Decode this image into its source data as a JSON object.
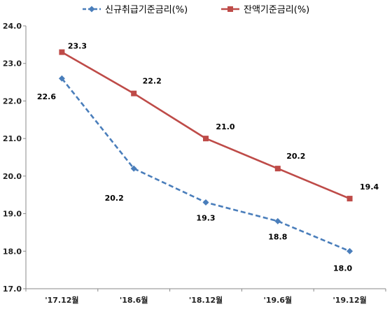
{
  "chart_data": {
    "type": "line",
    "categories": [
      "'17.12월",
      "'18.6월",
      "'18.12월",
      "'19.6월",
      "'19.12월"
    ],
    "series": [
      {
        "name": "신규취급기준금리(%)",
        "values": [
          22.6,
          20.2,
          19.3,
          18.8,
          18.0
        ],
        "labels": [
          "22.6",
          "20.2",
          "19.3",
          "18.8",
          "18.0"
        ],
        "color": "#4a7ebb",
        "line_style": "dashed",
        "marker": "diamond"
      },
      {
        "name": "잔액기준금리(%)",
        "values": [
          23.3,
          22.2,
          21.0,
          20.2,
          19.4
        ],
        "labels": [
          "23.3",
          "22.2",
          "21.0",
          "20.2",
          "19.4"
        ],
        "color": "#be4b48",
        "line_style": "solid",
        "marker": "square"
      }
    ],
    "ylim": [
      17.0,
      24.0
    ],
    "yticks": [
      "17.0",
      "18.0",
      "19.0",
      "20.0",
      "21.0",
      "22.0",
      "23.0",
      "24.0"
    ],
    "grid": false,
    "legend_position": "top"
  }
}
